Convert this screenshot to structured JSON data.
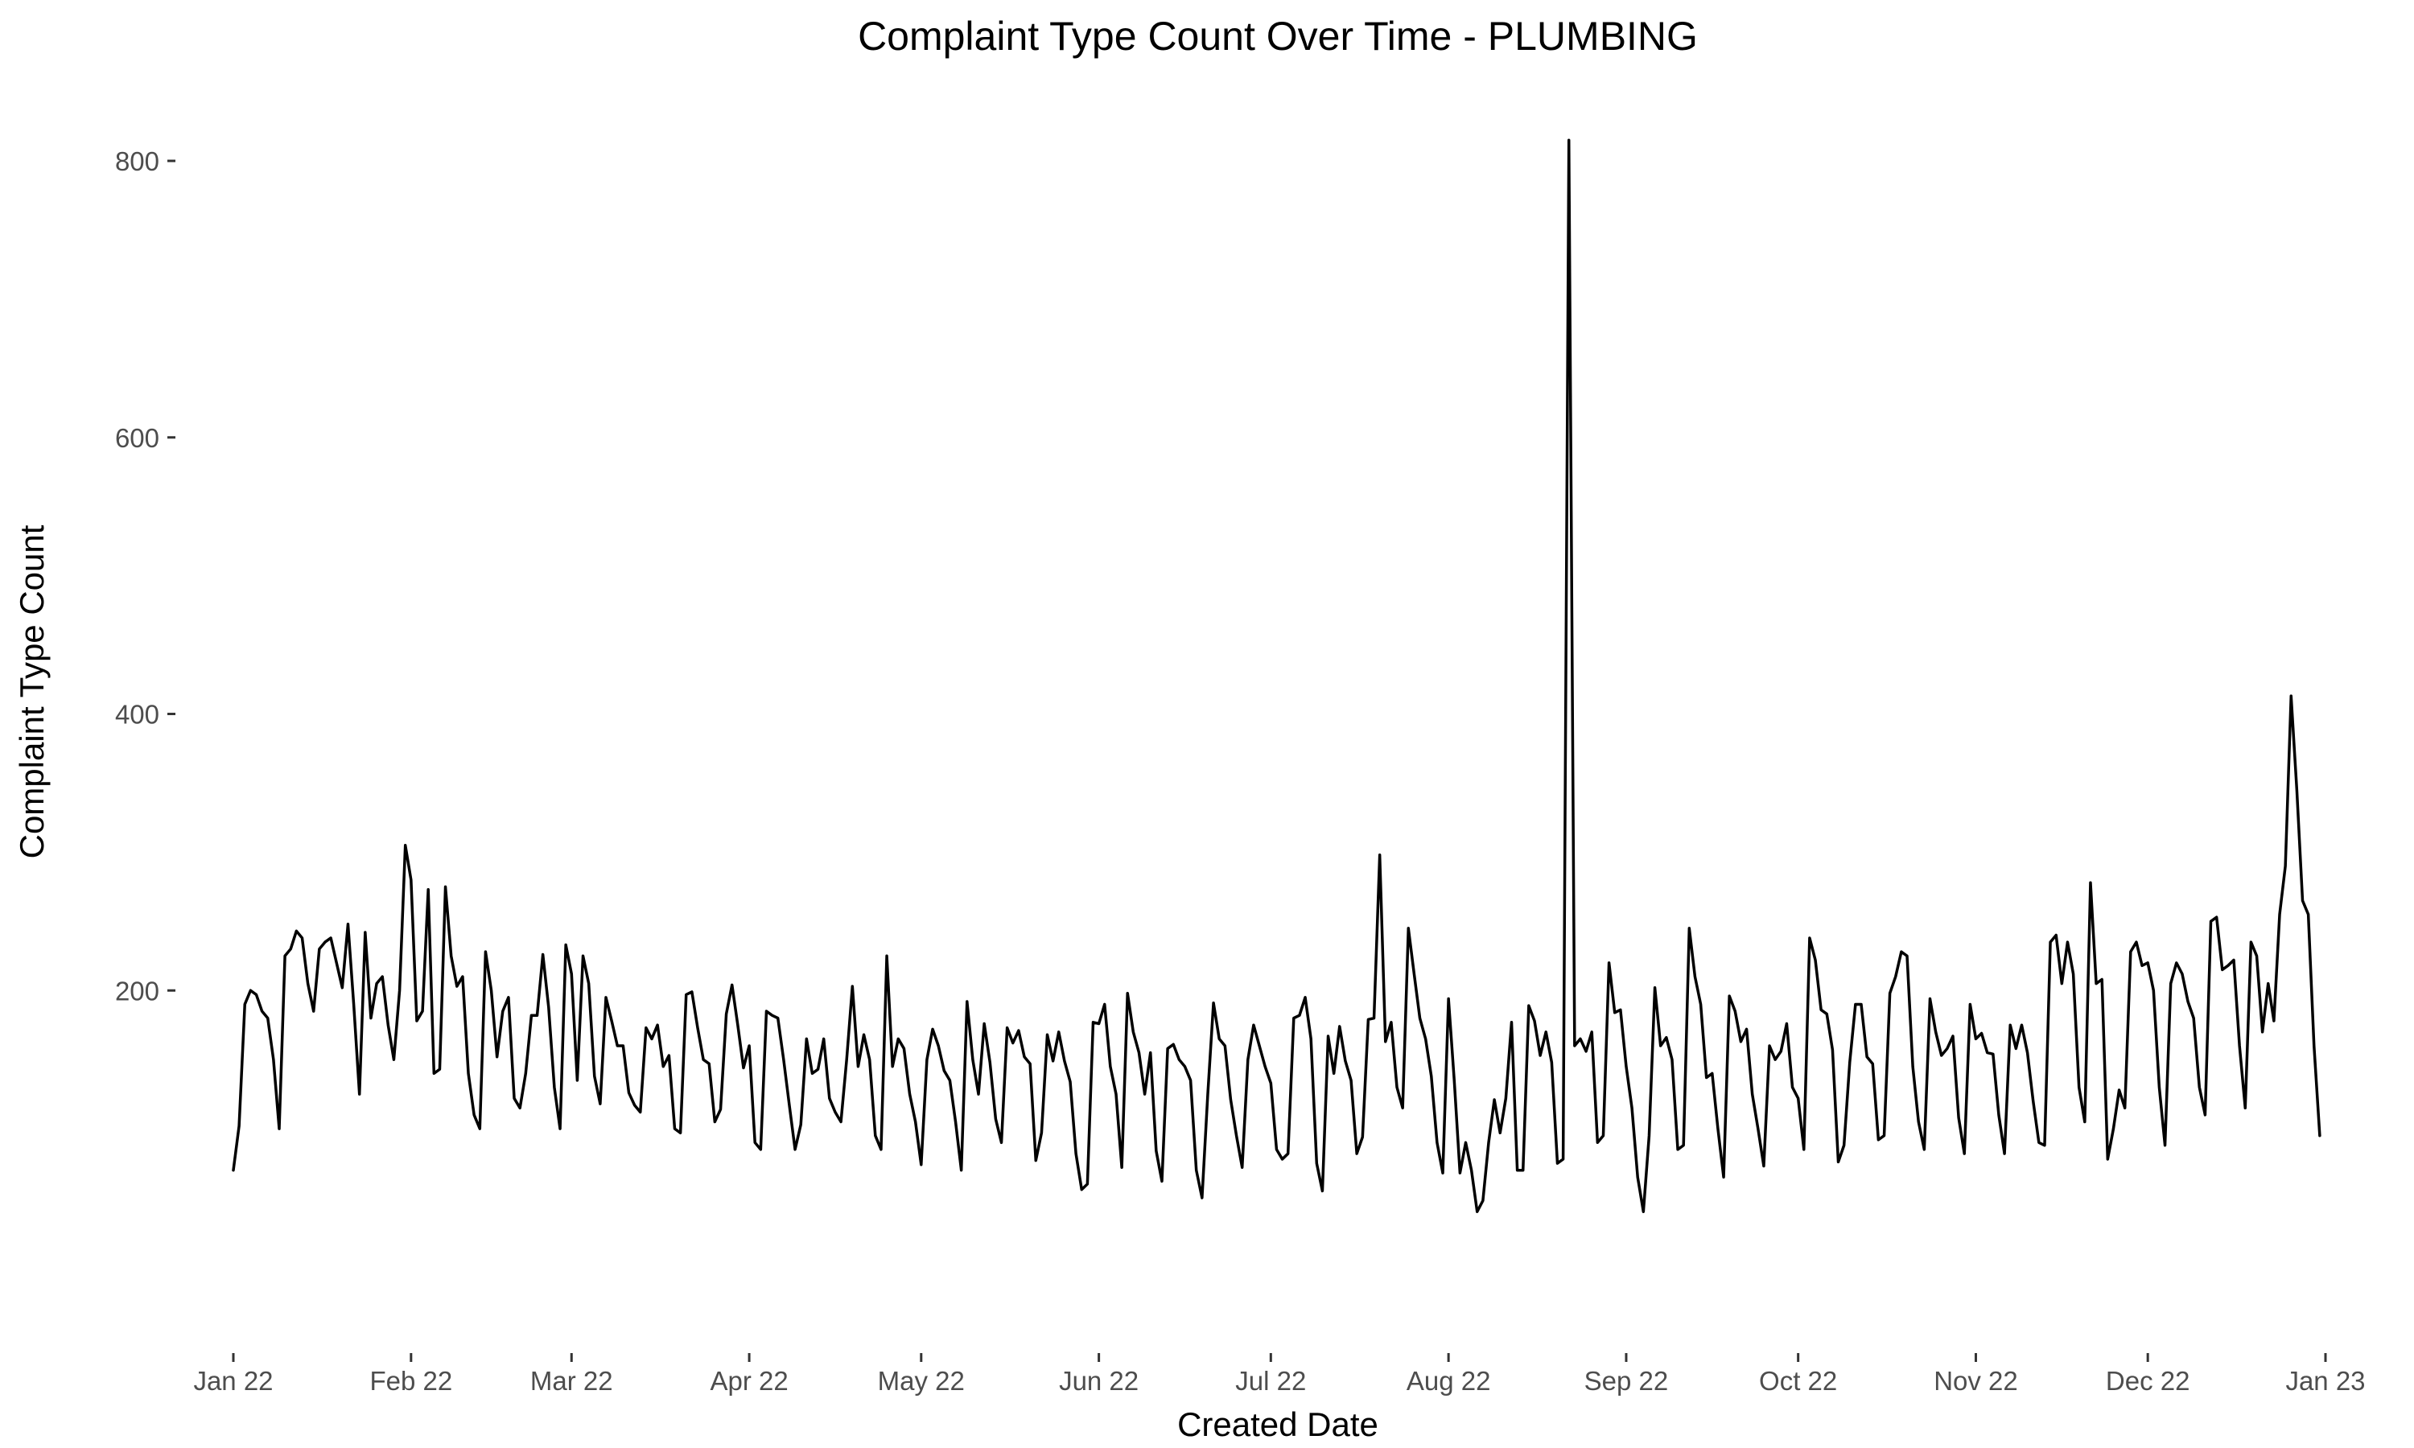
{
  "chart_data": {
    "type": "line",
    "title": "Complaint Type Count Over Time - PLUMBING",
    "xlabel": "Created Date",
    "ylabel": "Complaint Type Count",
    "xlim": [
      "2022-01-01",
      "2022-12-31"
    ],
    "ylim": [
      0,
      850
    ],
    "grid": false,
    "legend": "none",
    "line_color": "#000000",
    "x_ticks": [
      {
        "date": "2022-01-01",
        "label": "Jan 22"
      },
      {
        "date": "2022-02-01",
        "label": "Feb 22"
      },
      {
        "date": "2022-03-01",
        "label": "Mar 22"
      },
      {
        "date": "2022-04-01",
        "label": "Apr 22"
      },
      {
        "date": "2022-05-01",
        "label": "May 22"
      },
      {
        "date": "2022-06-01",
        "label": "Jun 22"
      },
      {
        "date": "2022-07-01",
        "label": "Jul 22"
      },
      {
        "date": "2022-08-01",
        "label": "Aug 22"
      },
      {
        "date": "2022-09-01",
        "label": "Sep 22"
      },
      {
        "date": "2022-10-01",
        "label": "Oct 22"
      },
      {
        "date": "2022-11-01",
        "label": "Nov 22"
      },
      {
        "date": "2022-12-01",
        "label": "Dec 22"
      },
      {
        "date": "2023-01-01",
        "label": "Jan 23"
      }
    ],
    "y_ticks": [
      {
        "value": 200,
        "label": "200"
      },
      {
        "value": 400,
        "label": "400"
      },
      {
        "value": 600,
        "label": "600"
      },
      {
        "value": 800,
        "label": "800"
      }
    ],
    "series": [
      {
        "x_start": "2022-01-01",
        "x_end": "2022-12-31",
        "values": [
          70,
          102,
          190,
          200,
          197,
          185,
          180,
          150,
          100,
          225,
          230,
          243,
          238,
          205,
          185,
          230,
          235,
          238,
          220,
          202,
          248,
          190,
          125,
          242,
          180,
          205,
          210,
          175,
          150,
          200,
          305,
          280,
          178,
          185,
          273,
          140,
          143,
          275,
          225,
          203,
          210,
          140,
          110,
          100,
          228,
          200,
          152,
          185,
          195,
          122,
          115,
          140,
          182,
          182,
          226,
          188,
          130,
          100,
          233,
          212,
          135,
          225,
          205,
          138,
          118,
          195,
          178,
          160,
          160,
          126,
          117,
          112,
          173,
          165,
          175,
          145,
          153,
          100,
          97,
          197,
          199,
          173,
          150,
          147,
          105,
          114,
          183,
          204,
          175,
          144,
          160,
          90,
          85,
          185,
          182,
          180,
          150,
          117,
          85,
          103,
          165,
          140,
          143,
          165,
          122,
          112,
          105,
          150,
          203,
          145,
          168,
          150,
          95,
          85,
          225,
          145,
          165,
          158,
          125,
          105,
          74,
          150,
          172,
          160,
          142,
          135,
          105,
          70,
          192,
          150,
          125,
          176,
          148,
          107,
          90,
          173,
          162,
          171,
          152,
          147,
          77,
          97,
          168,
          149,
          170,
          149,
          134,
          82,
          56,
          60,
          177,
          176,
          190,
          145,
          125,
          72,
          198,
          170,
          155,
          125,
          155,
          84,
          62,
          158,
          161,
          150,
          145,
          135,
          70,
          50,
          125,
          191,
          165,
          160,
          121,
          95,
          72,
          150,
          175,
          160,
          145,
          133,
          85,
          78,
          82,
          180,
          182,
          195,
          165,
          75,
          55,
          167,
          140,
          174,
          149,
          135,
          82,
          94,
          179,
          180,
          298,
          163,
          177,
          130,
          115,
          245,
          212,
          180,
          165,
          138,
          90,
          68,
          194,
          135,
          68,
          90,
          70,
          40,
          48,
          90,
          121,
          97,
          122,
          177,
          70,
          70,
          189,
          178,
          153,
          170,
          148,
          75,
          78,
          815,
          160,
          165,
          156,
          170,
          90,
          95,
          220,
          184,
          186,
          145,
          115,
          65,
          40,
          95,
          202,
          160,
          166,
          150,
          85,
          88,
          245,
          210,
          190,
          137,
          140,
          100,
          65,
          196,
          185,
          163,
          172,
          125,
          100,
          73,
          160,
          150,
          156,
          176,
          130,
          122,
          85,
          238,
          222,
          186,
          183,
          157,
          76,
          88,
          148,
          190,
          190,
          152,
          147,
          92,
          95,
          198,
          210,
          228,
          225,
          145,
          105,
          85,
          194,
          170,
          153,
          158,
          167,
          108,
          82,
          190,
          165,
          169,
          155,
          154,
          110,
          82,
          175,
          158,
          175,
          155,
          120,
          90,
          88,
          235,
          240,
          205,
          235,
          212,
          130,
          105,
          278,
          205,
          208,
          78,
          100,
          128,
          115,
          228,
          235,
          218,
          220,
          200,
          130,
          88,
          205,
          220,
          212,
          192,
          180,
          130,
          110,
          250,
          253,
          215,
          218,
          222,
          160,
          115,
          235,
          225,
          170,
          205,
          178,
          255,
          290,
          413,
          345,
          265,
          255,
          160,
          95
        ]
      }
    ]
  }
}
